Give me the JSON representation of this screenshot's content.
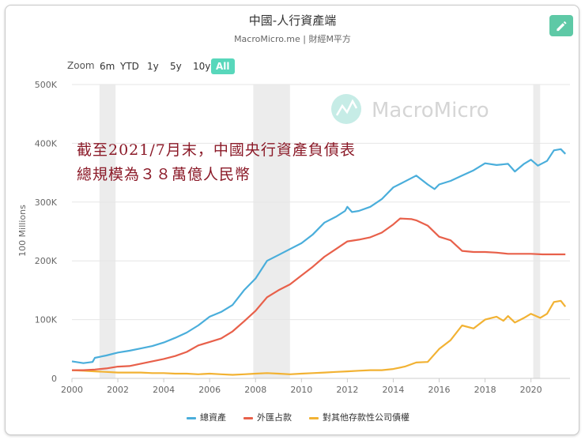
{
  "header": {
    "title": "中國-人行資產端",
    "subtitle": "MacroMicro.me | 財經M平方"
  },
  "toolbar": {
    "zoom_label": "Zoom",
    "zoom_buttons": [
      "6m",
      "YTD",
      "1y",
      "5y",
      "10y",
      "All"
    ],
    "active": "All",
    "edit_icon": "pencil-icon"
  },
  "watermark": {
    "text": "MacroMicro",
    "icon": "macromicro-logo-icon"
  },
  "annotation": {
    "line1": "截至2021/7月末，中國央行資產負債表",
    "line2": "總規模為３８萬億人民幣"
  },
  "colors": {
    "total": "#4aaedb",
    "fx": "#e8604a",
    "other": "#f2b233",
    "active_button": "#58d7bb",
    "edit_button": "#5ec9a6",
    "annotation": "#8b1a28",
    "shade": "#e6e6e6"
  },
  "chart_data": {
    "type": "line",
    "title": "中國-人行資產端",
    "ylabel": "100 Millions",
    "xlabel": "",
    "xlim": [
      2000,
      2021.7
    ],
    "ylim": [
      0,
      500000
    ],
    "x_ticks": [
      "2000",
      "2002",
      "2004",
      "2006",
      "2008",
      "2010",
      "2012",
      "2014",
      "2016",
      "2018",
      "2020"
    ],
    "y_ticks": [
      "0",
      "100K",
      "200K",
      "300K",
      "400K",
      "500K"
    ],
    "shaded_periods": [
      [
        2001.2,
        2001.9
      ],
      [
        2007.9,
        2009.5
      ],
      [
        2020.1,
        2020.4
      ]
    ],
    "legend_position": "bottom-center",
    "grid": "horizontal",
    "series": [
      {
        "name": "總資產",
        "points": [
          [
            2000.0,
            29000
          ],
          [
            2000.5,
            26000
          ],
          [
            2000.9,
            28000
          ],
          [
            2001.0,
            35000
          ],
          [
            2001.5,
            39000
          ],
          [
            2002.0,
            44000
          ],
          [
            2002.5,
            47000
          ],
          [
            2003.0,
            51000
          ],
          [
            2003.5,
            55000
          ],
          [
            2004.0,
            61000
          ],
          [
            2004.5,
            69000
          ],
          [
            2005.0,
            78000
          ],
          [
            2005.5,
            90000
          ],
          [
            2006.0,
            105000
          ],
          [
            2006.5,
            113000
          ],
          [
            2007.0,
            125000
          ],
          [
            2007.5,
            150000
          ],
          [
            2008.0,
            170000
          ],
          [
            2008.5,
            200000
          ],
          [
            2009.0,
            210000
          ],
          [
            2009.5,
            220000
          ],
          [
            2010.0,
            230000
          ],
          [
            2010.5,
            245000
          ],
          [
            2011.0,
            265000
          ],
          [
            2011.5,
            275000
          ],
          [
            2011.9,
            285000
          ],
          [
            2012.0,
            292000
          ],
          [
            2012.2,
            283000
          ],
          [
            2012.5,
            285000
          ],
          [
            2013.0,
            292000
          ],
          [
            2013.5,
            305000
          ],
          [
            2014.0,
            325000
          ],
          [
            2014.5,
            335000
          ],
          [
            2015.0,
            345000
          ],
          [
            2015.5,
            330000
          ],
          [
            2015.8,
            322000
          ],
          [
            2016.0,
            330000
          ],
          [
            2016.5,
            336000
          ],
          [
            2017.0,
            345000
          ],
          [
            2017.5,
            354000
          ],
          [
            2018.0,
            366000
          ],
          [
            2018.5,
            363000
          ],
          [
            2019.0,
            365000
          ],
          [
            2019.3,
            352000
          ],
          [
            2019.7,
            365000
          ],
          [
            2020.0,
            372000
          ],
          [
            2020.3,
            362000
          ],
          [
            2020.7,
            370000
          ],
          [
            2021.0,
            388000
          ],
          [
            2021.3,
            390000
          ],
          [
            2021.5,
            382000
          ]
        ]
      },
      {
        "name": "外匯占款",
        "points": [
          [
            2000.0,
            14000
          ],
          [
            2000.5,
            14000
          ],
          [
            2001.0,
            15000
          ],
          [
            2001.5,
            17000
          ],
          [
            2002.0,
            20000
          ],
          [
            2002.5,
            21000
          ],
          [
            2003.0,
            25000
          ],
          [
            2003.5,
            29000
          ],
          [
            2004.0,
            33000
          ],
          [
            2004.5,
            38000
          ],
          [
            2005.0,
            45000
          ],
          [
            2005.5,
            56000
          ],
          [
            2006.0,
            62000
          ],
          [
            2006.5,
            68000
          ],
          [
            2007.0,
            80000
          ],
          [
            2007.5,
            97000
          ],
          [
            2008.0,
            115000
          ],
          [
            2008.5,
            138000
          ],
          [
            2009.0,
            150000
          ],
          [
            2009.5,
            160000
          ],
          [
            2010.0,
            175000
          ],
          [
            2010.5,
            190000
          ],
          [
            2011.0,
            207000
          ],
          [
            2011.5,
            220000
          ],
          [
            2012.0,
            233000
          ],
          [
            2012.5,
            236000
          ],
          [
            2013.0,
            240000
          ],
          [
            2013.5,
            248000
          ],
          [
            2014.0,
            262000
          ],
          [
            2014.3,
            272000
          ],
          [
            2014.8,
            271000
          ],
          [
            2015.0,
            269000
          ],
          [
            2015.5,
            260000
          ],
          [
            2016.0,
            241000
          ],
          [
            2016.5,
            235000
          ],
          [
            2017.0,
            217000
          ],
          [
            2017.5,
            215000
          ],
          [
            2018.0,
            215000
          ],
          [
            2018.5,
            214000
          ],
          [
            2019.0,
            212000
          ],
          [
            2019.5,
            212000
          ],
          [
            2020.0,
            212000
          ],
          [
            2020.5,
            211000
          ],
          [
            2021.0,
            211000
          ],
          [
            2021.5,
            211000
          ]
        ]
      },
      {
        "name": "對其他存款性公司債權",
        "points": [
          [
            2000.0,
            14000
          ],
          [
            2000.5,
            13000
          ],
          [
            2001.0,
            12000
          ],
          [
            2001.5,
            11000
          ],
          [
            2002.0,
            10000
          ],
          [
            2002.5,
            10000
          ],
          [
            2003.0,
            10000
          ],
          [
            2003.5,
            9000
          ],
          [
            2004.0,
            9000
          ],
          [
            2004.5,
            8000
          ],
          [
            2005.0,
            8000
          ],
          [
            2005.5,
            7000
          ],
          [
            2006.0,
            8000
          ],
          [
            2006.5,
            7000
          ],
          [
            2007.0,
            6000
          ],
          [
            2007.5,
            7000
          ],
          [
            2008.0,
            8000
          ],
          [
            2008.5,
            9000
          ],
          [
            2009.0,
            8000
          ],
          [
            2009.5,
            7000
          ],
          [
            2010.0,
            8000
          ],
          [
            2010.5,
            9000
          ],
          [
            2011.0,
            10000
          ],
          [
            2011.5,
            11000
          ],
          [
            2012.0,
            12000
          ],
          [
            2012.5,
            13000
          ],
          [
            2013.0,
            14000
          ],
          [
            2013.5,
            14000
          ],
          [
            2014.0,
            16000
          ],
          [
            2014.5,
            20000
          ],
          [
            2015.0,
            27000
          ],
          [
            2015.5,
            28000
          ],
          [
            2016.0,
            50000
          ],
          [
            2016.5,
            65000
          ],
          [
            2017.0,
            90000
          ],
          [
            2017.5,
            85000
          ],
          [
            2018.0,
            100000
          ],
          [
            2018.5,
            105000
          ],
          [
            2018.8,
            98000
          ],
          [
            2019.0,
            106000
          ],
          [
            2019.3,
            95000
          ],
          [
            2019.7,
            103000
          ],
          [
            2020.0,
            110000
          ],
          [
            2020.4,
            103000
          ],
          [
            2020.7,
            110000
          ],
          [
            2021.0,
            130000
          ],
          [
            2021.3,
            132000
          ],
          [
            2021.5,
            122000
          ]
        ]
      }
    ]
  }
}
